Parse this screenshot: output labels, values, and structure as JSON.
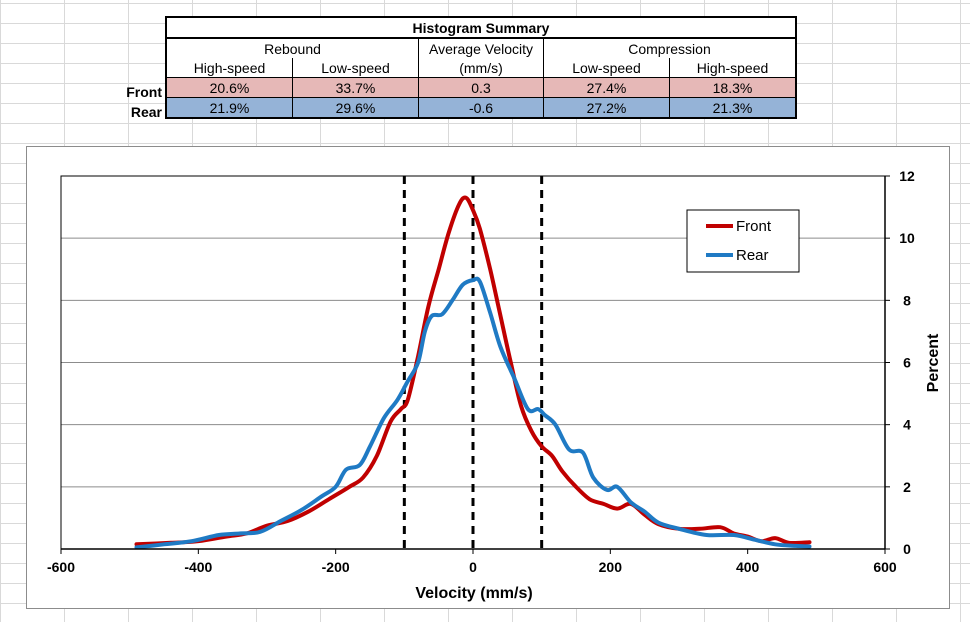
{
  "table": {
    "title": "Histogram Summary",
    "groups": [
      "Rebound",
      "Average Velocity",
      "Compression"
    ],
    "subheaders": [
      "High-speed",
      "Low-speed",
      "(mm/s)",
      "Low-speed",
      "High-speed"
    ],
    "rows": [
      {
        "label": "Front",
        "values": [
          "20.6%",
          "33.7%",
          "0.3",
          "27.4%",
          "18.3%"
        ]
      },
      {
        "label": "Rear",
        "values": [
          "21.9%",
          "29.6%",
          "-0.6",
          "27.2%",
          "21.3%"
        ]
      }
    ]
  },
  "colors": {
    "front_line": "#c00000",
    "rear_line": "#1f7ac4",
    "front_row": "#e6b8b7",
    "rear_row": "#95b3d7"
  },
  "chart_data": {
    "type": "line",
    "title": "",
    "xlabel": "Velocity (mm/s)",
    "ylabel": "Percent",
    "xlim": [
      -600,
      600
    ],
    "ylim": [
      0,
      12
    ],
    "xticks": [
      -600,
      -400,
      -200,
      0,
      200,
      400,
      600
    ],
    "yticks": [
      0,
      2,
      4,
      6,
      8,
      10,
      12
    ],
    "grid": "horizontal",
    "legend_position": "top-right",
    "reference_lines_x": [
      -100,
      0,
      100
    ],
    "series": [
      {
        "name": "Front",
        "x": [
          -490,
          -440,
          -400,
          -360,
          -330,
          -300,
          -270,
          -240,
          -210,
          -180,
          -160,
          -140,
          -120,
          -105,
          -95,
          -80,
          -65,
          -50,
          -35,
          -20,
          -10,
          0,
          10,
          25,
          40,
          55,
          70,
          85,
          100,
          115,
          130,
          150,
          170,
          190,
          210,
          230,
          250,
          270,
          300,
          330,
          360,
          380,
          400,
          420,
          440,
          460,
          490
        ],
        "y": [
          0.15,
          0.2,
          0.25,
          0.4,
          0.5,
          0.75,
          0.9,
          1.2,
          1.6,
          2.0,
          2.3,
          3.0,
          4.1,
          4.5,
          4.8,
          6.2,
          7.8,
          9.0,
          10.2,
          11.1,
          11.3,
          10.9,
          10.3,
          9.0,
          7.5,
          6.0,
          4.6,
          3.8,
          3.3,
          3.0,
          2.5,
          2.0,
          1.6,
          1.45,
          1.3,
          1.45,
          1.1,
          0.8,
          0.65,
          0.65,
          0.7,
          0.5,
          0.4,
          0.25,
          0.35,
          0.2,
          0.22
        ]
      },
      {
        "name": "Rear",
        "x": [
          -490,
          -450,
          -410,
          -370,
          -340,
          -310,
          -280,
          -250,
          -220,
          -200,
          -185,
          -165,
          -150,
          -130,
          -110,
          -95,
          -80,
          -70,
          -60,
          -45,
          -30,
          -15,
          0,
          10,
          25,
          40,
          60,
          80,
          95,
          105,
          120,
          140,
          160,
          175,
          195,
          210,
          230,
          250,
          270,
          300,
          340,
          380,
          410,
          440,
          470,
          490
        ],
        "y": [
          0.05,
          0.15,
          0.25,
          0.45,
          0.5,
          0.55,
          0.9,
          1.25,
          1.7,
          2.0,
          2.55,
          2.7,
          3.3,
          4.2,
          4.8,
          5.4,
          6.0,
          7.0,
          7.5,
          7.55,
          8.0,
          8.5,
          8.65,
          8.6,
          7.6,
          6.5,
          5.5,
          4.5,
          4.5,
          4.3,
          4.0,
          3.2,
          3.1,
          2.3,
          1.9,
          2.0,
          1.5,
          1.2,
          0.85,
          0.65,
          0.45,
          0.45,
          0.3,
          0.15,
          0.1,
          0.08
        ]
      }
    ]
  }
}
